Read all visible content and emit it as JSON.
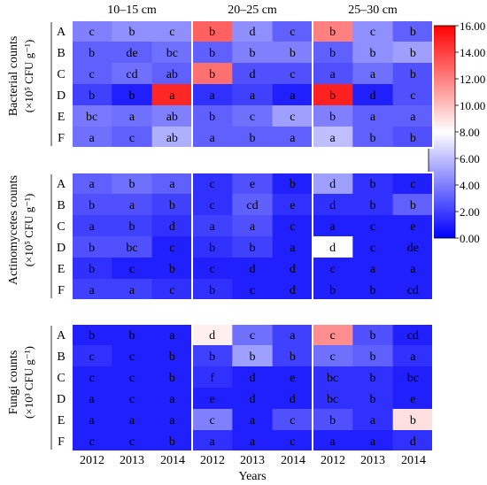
{
  "chart_data": {
    "type": "heatmap",
    "depths": [
      "10–15 cm",
      "20–25 cm",
      "25–30 cm"
    ],
    "years": [
      "2012",
      "2013",
      "2014"
    ],
    "treatments": [
      "A",
      "B",
      "C",
      "D",
      "E",
      "F"
    ],
    "xlabel": "Years",
    "colorbar": {
      "min": 0,
      "max": 16,
      "ticks": [
        "0.00",
        "2.00",
        "4.00",
        "6.00",
        "8.00",
        "10.00",
        "12.00",
        "14.00",
        "16.00"
      ],
      "colors": [
        "#0000ff",
        "#ffffff",
        "#ff0000"
      ]
    },
    "panels": [
      {
        "name": "bacterial",
        "ylabel_line1": "Bacterial counts",
        "ylabel_line2": "(×10⁵ CFU g⁻¹)",
        "values": [
          [
            [
              4.0,
              4.5,
              4.5
            ],
            [
              3.0,
              3.0,
              3.5
            ],
            [
              3.0,
              3.5,
              3.0
            ],
            [
              2.0,
              1.0,
              14.8
            ],
            [
              3.8,
              3.5,
              4.0
            ],
            [
              3.5,
              3.0,
              5.5
            ]
          ],
          [
            [
              13.0,
              4.5,
              3.0
            ],
            [
              3.0,
              4.0,
              4.0
            ],
            [
              12.5,
              2.5,
              2.5
            ],
            [
              1.5,
              2.0,
              1.0
            ],
            [
              3.0,
              3.5,
              5.0
            ],
            [
              3.0,
              3.0,
              3.0
            ]
          ],
          [
            [
              12.0,
              4.5,
              3.0
            ],
            [
              3.0,
              4.5,
              5.0
            ],
            [
              2.5,
              3.5,
              2.5
            ],
            [
              15.0,
              1.0,
              2.5
            ],
            [
              4.0,
              3.0,
              3.0
            ],
            [
              6.0,
              3.0,
              2.5
            ]
          ]
        ],
        "letters": [
          [
            [
              "c",
              "b",
              "c"
            ],
            [
              "b",
              "de",
              "bc"
            ],
            [
              "c",
              "cd",
              "ab"
            ],
            [
              "b",
              "b",
              "a"
            ],
            [
              "bc",
              "a",
              "ab"
            ],
            [
              "a",
              "c",
              "ab"
            ]
          ],
          [
            [
              "b",
              "d",
              "c"
            ],
            [
              "b",
              "b",
              "b"
            ],
            [
              "b",
              "d",
              "c"
            ],
            [
              "a",
              "a",
              "a"
            ],
            [
              "b",
              "c",
              "c"
            ],
            [
              "a",
              "b",
              "a"
            ]
          ],
          [
            [
              "b",
              "c",
              "b"
            ],
            [
              "b",
              "b",
              "b"
            ],
            [
              "a",
              "a",
              "b"
            ],
            [
              "b",
              "d",
              "c"
            ],
            [
              "b",
              "a",
              "a"
            ],
            [
              "a",
              "b",
              "b"
            ]
          ]
        ]
      },
      {
        "name": "actinomycetes",
        "ylabel_line1": "Actinomycetes counts",
        "ylabel_line2": "(×10⁵ CFU g⁻¹)",
        "values": [
          [
            [
              3.0,
              3.5,
              3.0
            ],
            [
              2.5,
              2.5,
              2.0
            ],
            [
              2.0,
              2.0,
              1.5
            ],
            [
              2.5,
              2.5,
              1.0
            ],
            [
              1.5,
              1.0,
              1.0
            ],
            [
              2.0,
              2.0,
              1.5
            ]
          ],
          [
            [
              1.5,
              2.5,
              1.0
            ],
            [
              1.5,
              3.0,
              1.5
            ],
            [
              2.0,
              2.5,
              1.0
            ],
            [
              1.5,
              2.0,
              1.0
            ],
            [
              1.0,
              1.0,
              1.0
            ],
            [
              1.5,
              1.0,
              1.0
            ]
          ],
          [
            [
              5.0,
              1.5,
              1.0
            ],
            [
              1.5,
              1.5,
              3.0
            ],
            [
              1.0,
              1.0,
              1.0
            ],
            [
              8.0,
              1.0,
              1.0
            ],
            [
              1.0,
              1.0,
              1.0
            ],
            [
              1.0,
              1.0,
              1.0
            ]
          ]
        ],
        "letters": [
          [
            [
              "a",
              "b",
              "a"
            ],
            [
              "b",
              "a",
              "b"
            ],
            [
              "a",
              "b",
              "d"
            ],
            [
              "b",
              "bc",
              "c"
            ],
            [
              "b",
              "c",
              "b"
            ],
            [
              "a",
              "a",
              "c"
            ]
          ],
          [
            [
              "c",
              "e",
              "b"
            ],
            [
              "c",
              "cd",
              "e"
            ],
            [
              "a",
              "a",
              "c"
            ],
            [
              "b",
              "b",
              "a"
            ],
            [
              "c",
              "d",
              "d"
            ],
            [
              "b",
              "c",
              "d"
            ]
          ],
          [
            [
              "d",
              "b",
              "c"
            ],
            [
              "d",
              "b",
              "b"
            ],
            [
              "a",
              "c",
              "e"
            ],
            [
              "d",
              "c",
              "de"
            ],
            [
              "c",
              "a",
              "a"
            ],
            [
              "b",
              "b",
              "cd"
            ]
          ]
        ]
      },
      {
        "name": "fungi",
        "ylabel_line1": "Fungi counts",
        "ylabel_line2": "(×10³ CFU g⁻¹)",
        "values": [
          [
            [
              1.0,
              1.0,
              1.0
            ],
            [
              1.5,
              1.0,
              1.0
            ],
            [
              1.0,
              1.0,
              1.0
            ],
            [
              1.0,
              1.0,
              1.0
            ],
            [
              1.0,
              1.0,
              1.0
            ],
            [
              1.0,
              1.0,
              1.0
            ]
          ],
          [
            [
              8.5,
              3.5,
              2.0
            ],
            [
              2.0,
              5.0,
              2.0
            ],
            [
              1.5,
              1.0,
              1.0
            ],
            [
              1.0,
              1.0,
              1.0
            ],
            [
              4.0,
              1.0,
              2.5
            ],
            [
              1.5,
              1.0,
              1.0
            ]
          ],
          [
            [
              11.5,
              2.5,
              1.0
            ],
            [
              3.5,
              3.0,
              1.5
            ],
            [
              1.5,
              1.5,
              1.0
            ],
            [
              1.5,
              1.5,
              1.0
            ],
            [
              2.5,
              1.5,
              9.0
            ],
            [
              1.0,
              1.0,
              1.5
            ]
          ]
        ],
        "letters": [
          [
            [
              "b",
              "b",
              "a"
            ],
            [
              "c",
              "c",
              "b"
            ],
            [
              "c",
              "c",
              "b"
            ],
            [
              "a",
              "c",
              "a"
            ],
            [
              "a",
              "a",
              "a"
            ],
            [
              "c",
              "c",
              "b"
            ]
          ],
          [
            [
              "d",
              "c",
              "a"
            ],
            [
              "b",
              "b",
              "b"
            ],
            [
              "f",
              "d",
              "e"
            ],
            [
              "e",
              "d",
              "d"
            ],
            [
              "c",
              "a",
              "c"
            ],
            [
              "a",
              "a",
              "c"
            ]
          ],
          [
            [
              "c",
              "b",
              "cd"
            ],
            [
              "c",
              "b",
              "a"
            ],
            [
              "bc",
              "b",
              "bc"
            ],
            [
              "bc",
              "b",
              "e"
            ],
            [
              "b",
              "a",
              "b"
            ],
            [
              "a",
              "a",
              "d"
            ]
          ]
        ]
      }
    ]
  }
}
